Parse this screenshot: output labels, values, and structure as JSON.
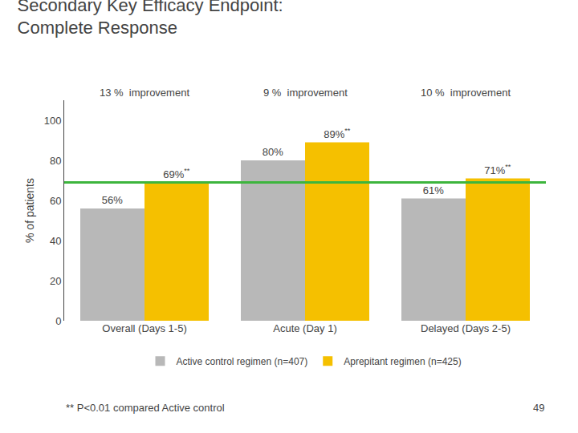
{
  "chart_data": {
    "type": "bar",
    "title": "Secondary Key Efficacy Endpoint:\nComplete Response",
    "categories": [
      "Overall (Days 1-5)",
      "Acute (Day 1)",
      "Delayed (Days 2-5)"
    ],
    "series": [
      {
        "name": "Active control regimen (n=407)",
        "color": "#b8b8b8",
        "values": [
          56,
          80,
          61
        ],
        "value_labels": [
          "56%",
          "80%",
          "61%"
        ]
      },
      {
        "name": "Aprepitant regimen (n=425)",
        "color": "#f5c000",
        "values": [
          69,
          89,
          71
        ],
        "value_labels": [
          "69%",
          "89%",
          "71%"
        ],
        "significance_labels": [
          "**",
          "**",
          "**"
        ]
      }
    ],
    "ylabel": "% of patients",
    "ylim": [
      0,
      110
    ],
    "yticks": [
      0,
      20,
      40,
      60,
      80,
      100
    ],
    "grid": false,
    "legend": "lower center",
    "data_labels": true,
    "reference_line": {
      "value": 69,
      "color": "#3db53d"
    },
    "annotations": [
      {
        "category": "Overall (Days 1-5)",
        "text": "13 %  improvement"
      },
      {
        "category": "Acute (Day 1)",
        "text": "9 %  improvement"
      },
      {
        "category": "Delayed (Days 2-5)",
        "text": "10 %  improvement"
      }
    ],
    "footnote": "** P<0.01 compared Active control",
    "page_number": "49"
  }
}
